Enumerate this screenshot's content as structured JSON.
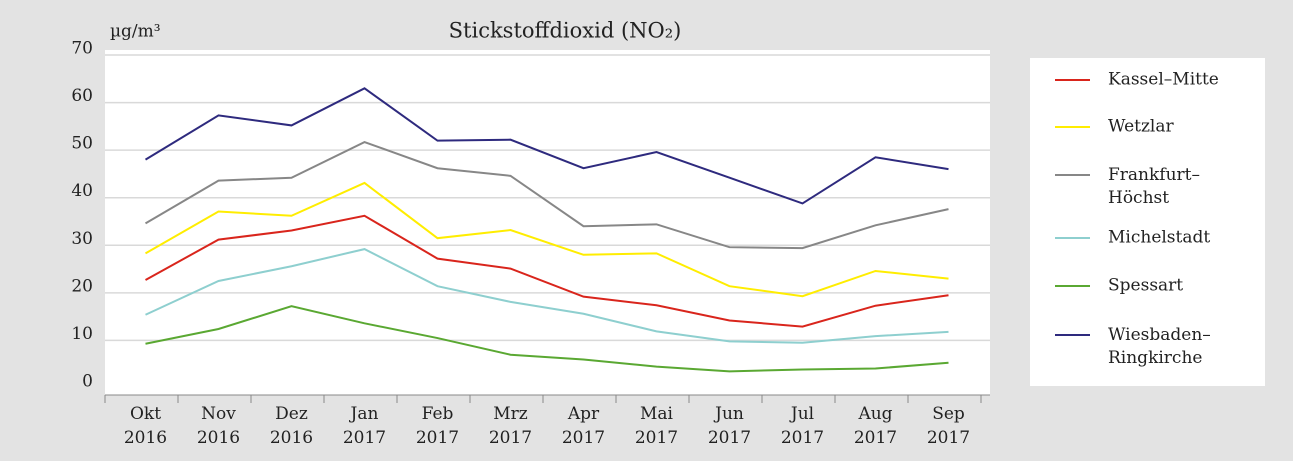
{
  "chart_data": {
    "type": "line",
    "title": "Stickstoffdioxid (NO₂)",
    "y_label": "µg/m³",
    "categories": [
      "Okt 2016",
      "Nov 2016",
      "Dez 2016",
      "Jan 2017",
      "Feb 2017",
      "Mrz 2017",
      "Apr 2017",
      "Mai 2017",
      "Jun 2017",
      "Jul 2017",
      "Aug 2017",
      "Sep 2017"
    ],
    "ylim": [
      0,
      70
    ],
    "yticks": [
      0,
      10,
      20,
      30,
      40,
      50,
      60,
      70
    ],
    "grid": true,
    "legend": "right",
    "series": [
      {
        "name": "Kassel–Mitte",
        "color": "#d9251c",
        "values": [
          22.7,
          31.2,
          33.1,
          36.2,
          27.2,
          25.1,
          19.2,
          17.4,
          14.2,
          12.9,
          17.3,
          19.5
        ]
      },
      {
        "name": "Wetzlar",
        "color": "#ffed00",
        "values": [
          28.3,
          37.1,
          36.2,
          43.1,
          31.5,
          33.2,
          28,
          28.3,
          21.4,
          19.3,
          24.6,
          23
        ]
      },
      {
        "name": "Frankfurt–Höchst",
        "color": "#878787",
        "values": [
          34.6,
          43.6,
          44.2,
          51.7,
          46.2,
          44.6,
          34,
          34.4,
          29.6,
          29.4,
          34.2,
          37.6
        ]
      },
      {
        "name": "Michelstadt",
        "color": "#8ecfcf",
        "values": [
          15.4,
          22.5,
          25.6,
          29.2,
          21.4,
          18.1,
          15.6,
          11.9,
          9.8,
          9.5,
          10.9,
          11.8
        ]
      },
      {
        "name": "Spessart",
        "color": "#5aa832",
        "values": [
          9.3,
          12.4,
          17.2,
          13.6,
          10.5,
          7,
          6,
          4.5,
          3.5,
          3.9,
          4.1,
          5.3
        ]
      },
      {
        "name": "Wiesbaden–Ringkirche",
        "color": "#2e2a7e",
        "values": [
          48,
          57.3,
          55.2,
          63,
          52,
          52.2,
          46.2,
          49.6,
          44.2,
          38.8,
          48.5,
          46
        ]
      }
    ]
  }
}
